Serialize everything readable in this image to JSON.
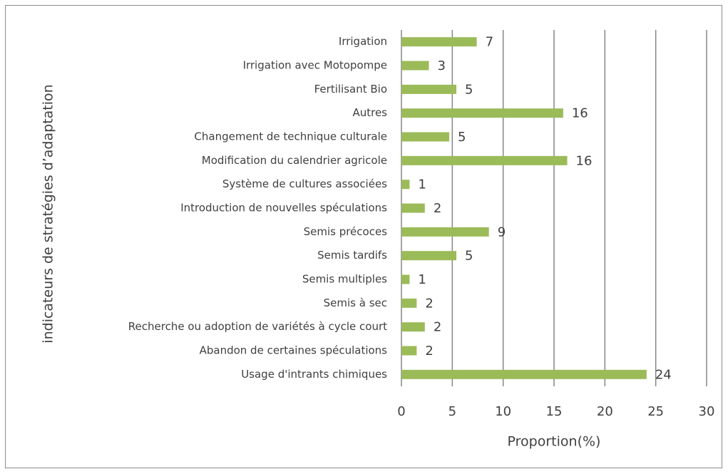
{
  "chart_data": {
    "type": "bar",
    "orientation": "horizontal",
    "x_label": "Proportion(%)",
    "y_label": "indicateurs de stratégies d’adaptation",
    "categories": [
      "Irrigation",
      "Irrigation avec Motopompe",
      "Fertilisant Bio",
      "Autres",
      "Changement de technique culturale",
      "Modification du calendrier agricole",
      "Système de cultures associées",
      "Introduction de nouvelles spéculations",
      "Semis précoces",
      "Semis tardifs",
      "Semis multiples",
      "Semis à sec",
      "Recherche ou adoption de variétés à cycle court",
      "Abandon de certaines spéculations",
      "Usage d'intrants chimiques"
    ],
    "values": [
      7.4,
      2.7,
      5.4,
      15.9,
      4.7,
      16.3,
      0.8,
      2.3,
      8.6,
      5.4,
      0.8,
      1.5,
      2.3,
      1.5,
      24.1
    ],
    "value_labels": [
      "7",
      "3",
      "5",
      "16",
      "5",
      "16",
      "1",
      "2",
      "9",
      "5",
      "1",
      "2",
      "2",
      "2",
      "24"
    ],
    "color": "#9bbb59",
    "xlim": [
      0,
      30
    ],
    "xticks": [
      0,
      5,
      10,
      15,
      20,
      25,
      30
    ],
    "grid": true
  }
}
